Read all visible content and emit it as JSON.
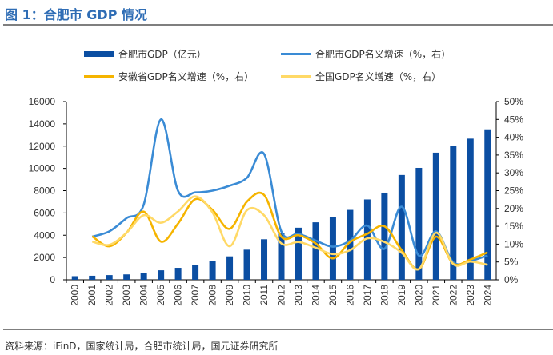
{
  "title": "图 1：合肥市 GDP 情况",
  "source": "资料来源：iFinD，国家统计局，合肥市统计局，国元证券研究所",
  "chart_data": {
    "type": "bar+line",
    "categories": [
      "2000",
      "2001",
      "2002",
      "2003",
      "2004",
      "2005",
      "2006",
      "2007",
      "2008",
      "2009",
      "2010",
      "2011",
      "2012",
      "2013",
      "2014",
      "2015",
      "2016",
      "2017",
      "2018",
      "2019",
      "2020",
      "2021",
      "2022",
      "2023",
      "2024"
    ],
    "left_axis": {
      "ylim": [
        0,
        16000
      ],
      "ticks": [
        "0",
        "2000",
        "4000",
        "6000",
        "8000",
        "10000",
        "12000",
        "14000",
        "16000"
      ]
    },
    "right_axis": {
      "ylim": [
        0,
        50
      ],
      "ticks": [
        "0%",
        "5%",
        "10%",
        "15%",
        "20%",
        "25%",
        "30%",
        "35%",
        "40%",
        "45%",
        "50%"
      ]
    },
    "legend_position": "top",
    "series": [
      {
        "name": "合肥市GDP（亿元）",
        "type": "bar",
        "axis": "left",
        "color": "#0b4ea2",
        "values": [
          325,
          363,
          423,
          485,
          590,
          853,
          1074,
          1334,
          1665,
          2102,
          2702,
          3637,
          4164,
          4673,
          5158,
          5660,
          6274,
          7213,
          7822,
          9409,
          10046,
          11413,
          12013,
          12674,
          13507
        ]
      },
      {
        "name": "合肥市GDP名义增速（%，右）",
        "type": "line",
        "axis": "right",
        "color": "#3a8bd5",
        "values": [
          null,
          12.1,
          13.6,
          17.3,
          21.1,
          45.0,
          24.9,
          24.5,
          25.0,
          26.4,
          28.6,
          35.3,
          13.6,
          12.9,
          11.0,
          9.3,
          11.0,
          15.2,
          8.7,
          20.5,
          6.8,
          13.6,
          4.9,
          5.3,
          6.8
        ]
      },
      {
        "name": "安徽省GDP名义增速（%，右）",
        "type": "line",
        "axis": "right",
        "color": "#f5b400",
        "values": [
          null,
          12.2,
          9.4,
          13.2,
          19.1,
          10.7,
          15.8,
          22.6,
          19.6,
          14.3,
          21.9,
          23.8,
          12.1,
          12.5,
          10.2,
          6.0,
          10.6,
          12.9,
          15.0,
          8.3,
          3.0,
          12.1,
          4.5,
          5.7,
          7.7
        ]
      },
      {
        "name": "全国GDP名义增速（%，右）",
        "type": "line",
        "axis": "right",
        "color": "#ffd966",
        "values": [
          null,
          10.7,
          9.8,
          13.2,
          18.1,
          16.0,
          19.2,
          23.4,
          18.9,
          9.4,
          19.5,
          18.1,
          10.2,
          10.6,
          9.0,
          7.2,
          8.3,
          11.6,
          10.6,
          7.6,
          3.0,
          13.2,
          4.4,
          5.1,
          4.2
        ]
      }
    ]
  }
}
